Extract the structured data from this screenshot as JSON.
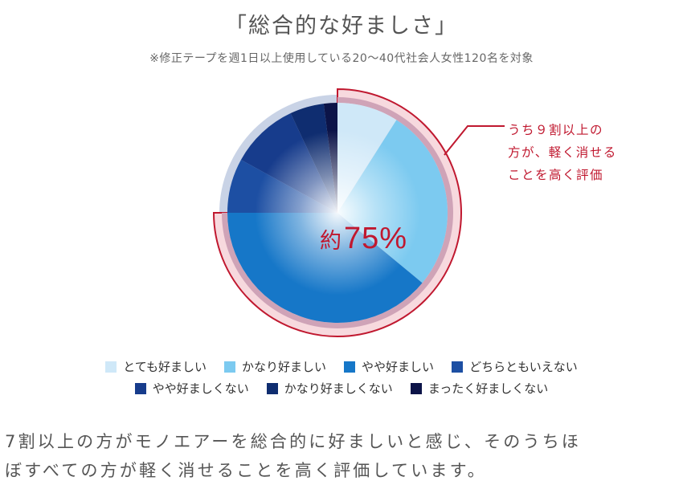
{
  "title": "「総合的な好ましさ」",
  "subtitle": "※修正テープを週1日以上使用している20〜40代社会人女性120名を対象",
  "chart_data": {
    "type": "pie",
    "categories": [
      "とても好ましい",
      "かなり好ましい",
      "やや好ましい",
      "どちらともいえない",
      "やや好ましくない",
      "かなり好ましくない",
      "まったく好ましくない"
    ],
    "values": [
      9,
      27,
      39,
      8,
      10,
      5,
      2
    ],
    "colors": [
      "#cfe8f8",
      "#7ccaf0",
      "#1677c8",
      "#1d4fa3",
      "#173c8c",
      "#0f2d70",
      "#0c1448"
    ],
    "highlight": {
      "label": "約75%",
      "categories": [
        "とても好ましい",
        "かなり好ましい",
        "やや好ましい"
      ],
      "value": 75
    }
  },
  "annotation": {
    "lines": [
      "うち９割以上の",
      "方が、軽く消せる",
      "ことを高く評価"
    ]
  },
  "highlight_label": {
    "prefix": "約",
    "value": "75%"
  },
  "legend": {
    "row1": [
      {
        "label": "とても好ましい",
        "color": "#cfe8f8"
      },
      {
        "label": "かなり好ましい",
        "color": "#7ccaf0"
      },
      {
        "label": "やや好ましい",
        "color": "#1677c8"
      },
      {
        "label": "どちらともいえない",
        "color": "#1d4fa3"
      }
    ],
    "row2": [
      {
        "label": "やや好ましくない",
        "color": "#173c8c"
      },
      {
        "label": "かなり好ましくない",
        "color": "#0f2d70"
      },
      {
        "label": "まったく好ましくない",
        "color": "#0c1448"
      }
    ]
  },
  "caption": {
    "line1": "7割以上の方がモノエアーを総合的に好ましいと感じ、そのうちほ",
    "line2": "ぼすべての方が軽く消せることを高く評価しています。"
  }
}
